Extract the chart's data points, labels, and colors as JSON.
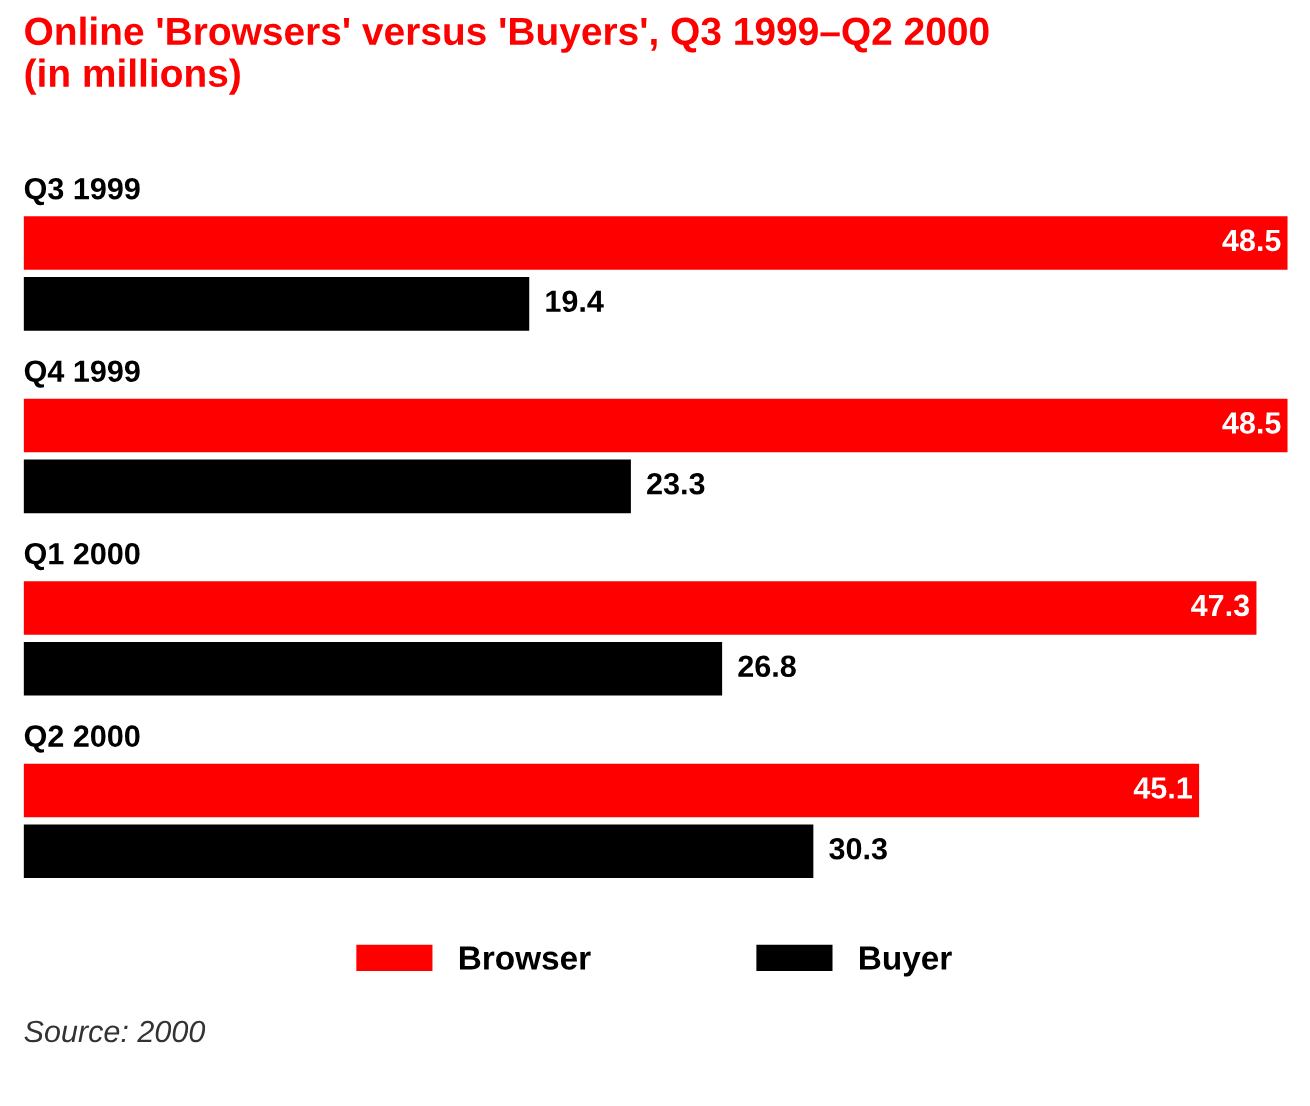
{
  "chart_data": {
    "type": "bar",
    "orientation": "horizontal",
    "title": "Online 'Browsers' versus 'Buyers', Q3 1999–Q2 2000\n(in millions)",
    "categories": [
      "Q3 1999",
      "Q4 1999",
      "Q1 2000",
      "Q2 2000"
    ],
    "series": [
      {
        "name": "Browser",
        "color": "#ff0000",
        "values": [
          48.5,
          48.5,
          47.3,
          45.1
        ]
      },
      {
        "name": "Buyer",
        "color": "#000000",
        "values": [
          19.4,
          23.3,
          26.8,
          30.3
        ]
      }
    ],
    "data_labels": true,
    "legend": "bottom",
    "annotations": [
      "Source: 2000"
    ]
  }
}
